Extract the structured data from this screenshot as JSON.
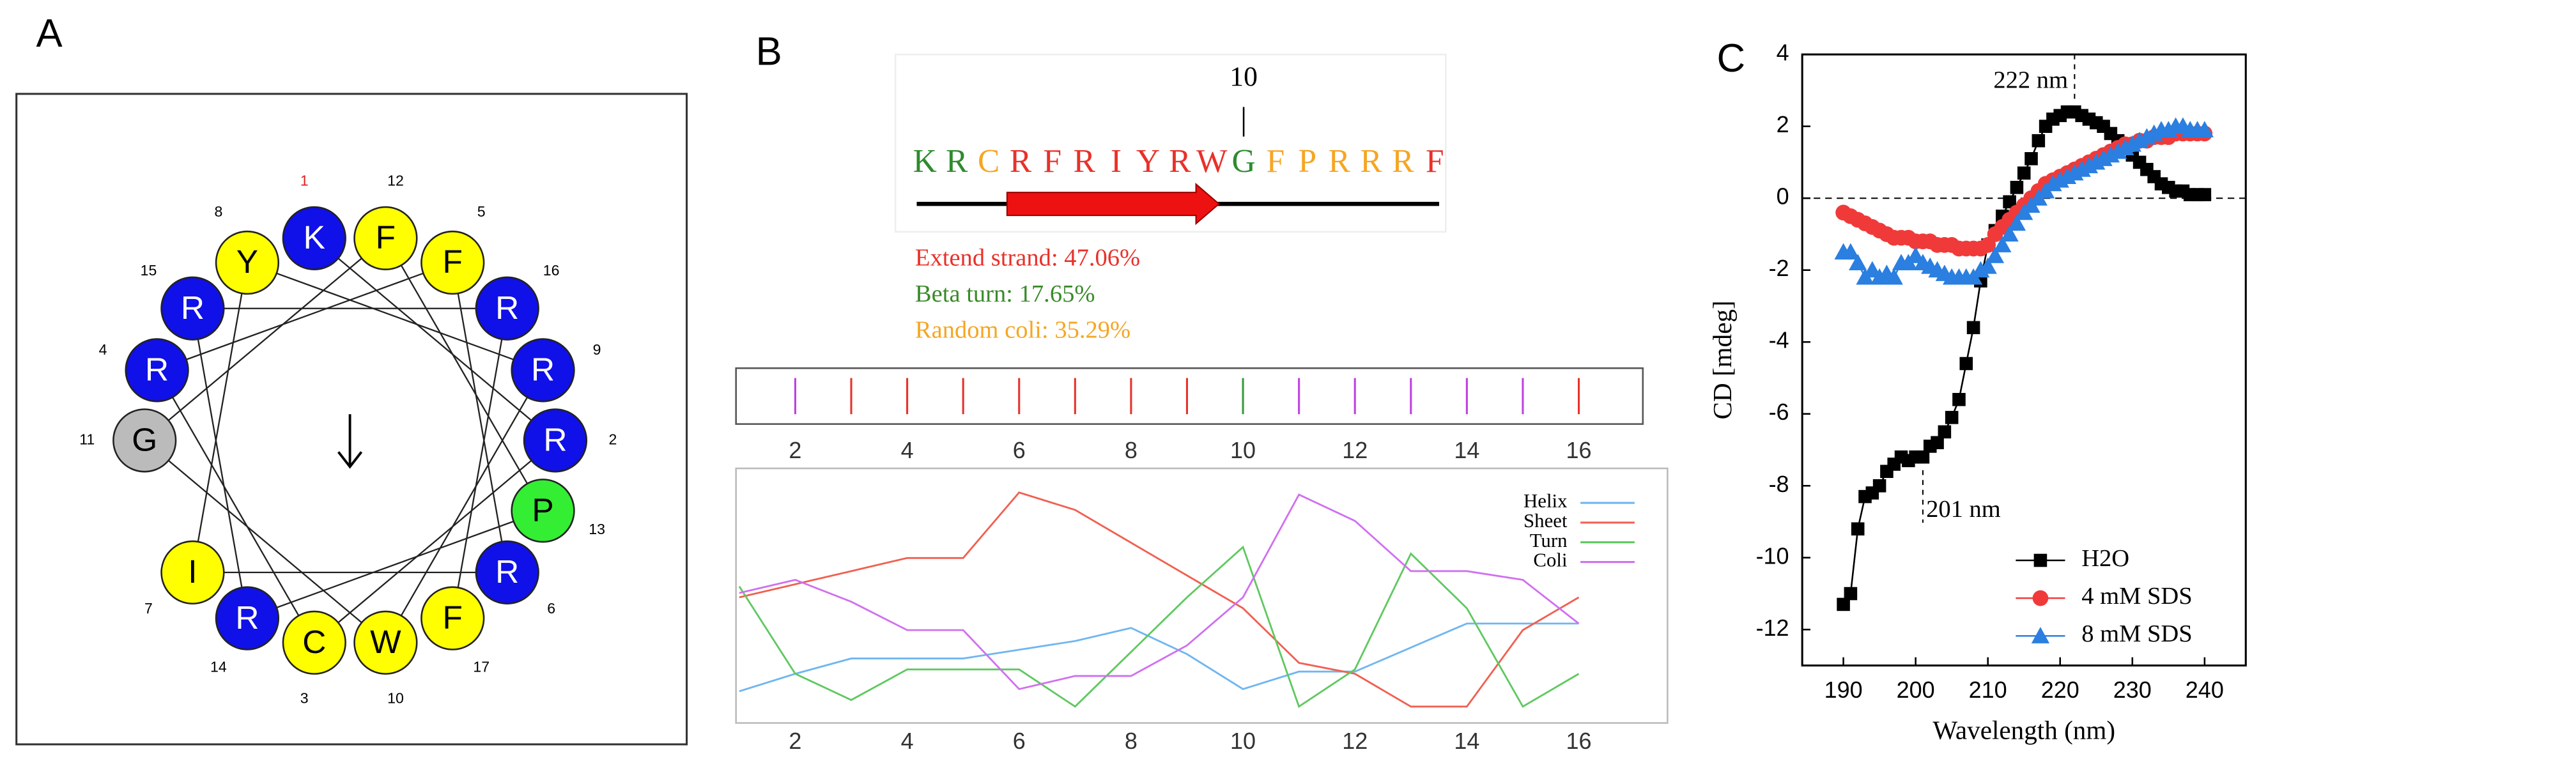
{
  "chart_data": [
    {
      "type": "helical-wheel",
      "label": "A",
      "residues": [
        {
          "number": 1,
          "letter": "K",
          "color": "#1010e8",
          "number_color": "#e02020"
        },
        {
          "number": 2,
          "letter": "R",
          "color": "#1010e8"
        },
        {
          "number": 3,
          "letter": "C",
          "color": "#ffff00"
        },
        {
          "number": 4,
          "letter": "R",
          "color": "#1010e8"
        },
        {
          "number": 5,
          "letter": "F",
          "color": "#ffff00"
        },
        {
          "number": 6,
          "letter": "R",
          "color": "#1010e8"
        },
        {
          "number": 7,
          "letter": "I",
          "color": "#ffff00"
        },
        {
          "number": 8,
          "letter": "Y",
          "color": "#ffff00"
        },
        {
          "number": 9,
          "letter": "R",
          "color": "#1010e8"
        },
        {
          "number": 10,
          "letter": "W",
          "color": "#ffff00"
        },
        {
          "number": 11,
          "letter": "G",
          "color": "#bbbbbb"
        },
        {
          "number": 12,
          "letter": "F",
          "color": "#ffff00"
        },
        {
          "number": 13,
          "letter": "P",
          "color": "#33ee33"
        },
        {
          "number": 14,
          "letter": "R",
          "color": "#1010e8"
        },
        {
          "number": 15,
          "letter": "R",
          "color": "#1010e8"
        },
        {
          "number": 16,
          "letter": "R",
          "color": "#1010e8"
        },
        {
          "number": 17,
          "letter": "F",
          "color": "#ffff00"
        }
      ]
    },
    {
      "type": "sequence-structure",
      "label": "B",
      "marker_label": "10",
      "sequence": [
        {
          "letter": "K",
          "color": "#2e8b2e"
        },
        {
          "letter": "R",
          "color": "#2e8b2e"
        },
        {
          "letter": "C",
          "color": "#f5a623"
        },
        {
          "letter": "R",
          "color": "#e8312a"
        },
        {
          "letter": "F",
          "color": "#e8312a"
        },
        {
          "letter": "R",
          "color": "#e8312a"
        },
        {
          "letter": "I",
          "color": "#e8312a"
        },
        {
          "letter": "Y",
          "color": "#e8312a"
        },
        {
          "letter": "R",
          "color": "#e8312a"
        },
        {
          "letter": "W",
          "color": "#e8312a"
        },
        {
          "letter": "G",
          "color": "#2e8b2e"
        },
        {
          "letter": "F",
          "color": "#f5a623"
        },
        {
          "letter": "P",
          "color": "#f5a623"
        },
        {
          "letter": "R",
          "color": "#f5a623"
        },
        {
          "letter": "R",
          "color": "#f5a623"
        },
        {
          "letter": "R",
          "color": "#f5a623"
        },
        {
          "letter": "F",
          "color": "#e8312a"
        }
      ],
      "legend": [
        {
          "text": "Extend strand: 47.06%",
          "color": "#e8312a"
        },
        {
          "text": "Beta turn: 17.65%",
          "color": "#3a8a2a"
        },
        {
          "text": "Random coli: 35.29%",
          "color": "#f5a623"
        }
      ],
      "strip": {
        "positions": [
          2,
          3,
          4,
          5,
          6,
          7,
          8,
          9,
          10,
          11,
          12,
          13,
          14,
          15,
          16
        ],
        "colors": [
          "#c040e0",
          "#e8312a",
          "#e8312a",
          "#e8312a",
          "#e8312a",
          "#e8312a",
          "#e8312a",
          "#e8312a",
          "#3a9a3a",
          "#c040e0",
          "#c040e0",
          "#c040e0",
          "#c040e0",
          "#c040e0",
          "#e8312a"
        ],
        "xlim": [
          1,
          16
        ],
        "xticks": [
          2,
          4,
          6,
          8,
          10,
          12,
          14,
          16
        ]
      },
      "profile": {
        "x": [
          1,
          2,
          3,
          4,
          5,
          6,
          7,
          8,
          9,
          10,
          11,
          12,
          13,
          14,
          15,
          16
        ],
        "xlim": [
          1,
          16
        ],
        "ylim": [
          0,
          1
        ],
        "xticks": [
          2,
          4,
          6,
          8,
          10,
          12,
          14,
          16
        ],
        "series": [
          {
            "name": "Helix",
            "color": "#6fb6f0",
            "values": [
              0.07,
              0.15,
              0.22,
              0.22,
              0.22,
              0.26,
              0.3,
              0.36,
              0.24,
              0.08,
              0.16,
              0.16,
              0.27,
              0.38,
              0.38,
              0.38
            ]
          },
          {
            "name": "Sheet",
            "color": "#f06050",
            "values": [
              0.5,
              0.56,
              0.62,
              0.68,
              0.68,
              0.98,
              0.9,
              0.75,
              0.6,
              0.45,
              0.2,
              0.15,
              0.0,
              0.0,
              0.35,
              0.5
            ]
          },
          {
            "name": "Turn",
            "color": "#60c860",
            "values": [
              0.55,
              0.15,
              0.03,
              0.17,
              0.17,
              0.17,
              0.0,
              0.25,
              0.5,
              0.73,
              0.0,
              0.17,
              0.7,
              0.45,
              0.0,
              0.15
            ]
          },
          {
            "name": "Coli",
            "color": "#d070f0",
            "values": [
              0.52,
              0.58,
              0.48,
              0.35,
              0.35,
              0.08,
              0.14,
              0.14,
              0.28,
              0.5,
              0.97,
              0.85,
              0.62,
              0.62,
              0.58,
              0.38
            ]
          }
        ]
      }
    },
    {
      "type": "line",
      "label": "C",
      "x_label": "Wavelength (nm)",
      "y_label": "CD [mdeg]",
      "xlim": [
        184.3,
        245.7
      ],
      "ylim": [
        -13,
        4
      ],
      "xticks": [
        190,
        200,
        210,
        220,
        230,
        240
      ],
      "yticks": [
        -12,
        -10,
        -8,
        -6,
        -4,
        -2,
        0,
        2,
        4
      ],
      "zero_line": true,
      "legend": "lower right",
      "x": [
        190,
        191,
        192,
        193,
        194,
        195,
        196,
        197,
        198,
        199,
        200,
        201,
        202,
        203,
        204,
        205,
        206,
        207,
        208,
        209,
        210,
        211,
        212,
        213,
        214,
        215,
        216,
        217,
        218,
        219,
        220,
        221,
        222,
        223,
        224,
        225,
        226,
        227,
        228,
        229,
        230,
        231,
        232,
        233,
        234,
        235,
        236,
        237,
        238,
        239,
        240
      ],
      "series": [
        {
          "name": "H2O",
          "color": "#000000",
          "marker": "square",
          "values": [
            -11.3,
            -11.0,
            -9.2,
            -8.3,
            -8.2,
            -8.0,
            -7.6,
            -7.4,
            -7.2,
            -7.3,
            -7.2,
            -7.2,
            -6.9,
            -6.8,
            -6.5,
            -6.1,
            -5.6,
            -4.6,
            -3.6,
            -2.3,
            -1.3,
            -0.9,
            -0.5,
            -0.1,
            0.3,
            0.7,
            1.1,
            1.6,
            2.0,
            2.2,
            2.3,
            2.4,
            2.4,
            2.3,
            2.2,
            2.1,
            2.0,
            1.8,
            1.6,
            1.4,
            1.2,
            1.0,
            0.8,
            0.6,
            0.4,
            0.3,
            0.2,
            0.2,
            0.1,
            0.1,
            0.1
          ]
        },
        {
          "name": "4 mM SDS",
          "color": "#f03a3a",
          "marker": "circle",
          "values": [
            -0.4,
            -0.5,
            -0.6,
            -0.7,
            -0.8,
            -0.9,
            -1.0,
            -1.1,
            -1.1,
            -1.1,
            -1.2,
            -1.2,
            -1.2,
            -1.3,
            -1.3,
            -1.3,
            -1.4,
            -1.4,
            -1.4,
            -1.4,
            -1.3,
            -1.0,
            -0.8,
            -0.6,
            -0.4,
            -0.2,
            0.0,
            0.2,
            0.4,
            0.5,
            0.6,
            0.7,
            0.8,
            0.9,
            1.0,
            1.1,
            1.2,
            1.3,
            1.4,
            1.5,
            1.5,
            1.6,
            1.6,
            1.7,
            1.7,
            1.7,
            1.8,
            1.8,
            1.8,
            1.8,
            1.8
          ]
        },
        {
          "name": "8 mM SDS",
          "color": "#2a7fe0",
          "marker": "triangle",
          "values": [
            -1.5,
            -1.5,
            -1.8,
            -2.2,
            -2.0,
            -2.2,
            -2.1,
            -2.2,
            -1.8,
            -1.8,
            -1.6,
            -1.8,
            -1.9,
            -2.0,
            -2.1,
            -2.2,
            -2.2,
            -2.2,
            -2.2,
            -2.0,
            -1.9,
            -1.6,
            -1.3,
            -1.0,
            -0.7,
            -0.4,
            -0.2,
            0.0,
            0.2,
            0.4,
            0.5,
            0.6,
            0.7,
            0.8,
            0.9,
            1.0,
            1.1,
            1.2,
            1.3,
            1.4,
            1.5,
            1.6,
            1.7,
            1.8,
            1.9,
            1.9,
            2.0,
            2.0,
            1.9,
            1.9,
            1.9
          ]
        }
      ],
      "annotations": [
        {
          "text": "222 nm",
          "x": 222
        },
        {
          "text": "201 nm",
          "x": 201
        }
      ]
    }
  ]
}
